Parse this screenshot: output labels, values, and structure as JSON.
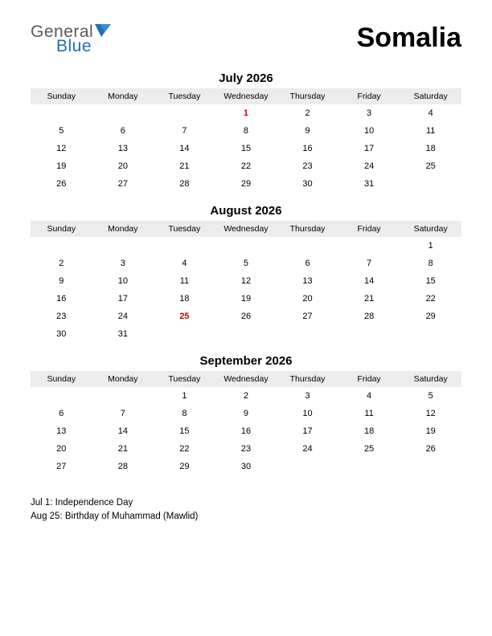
{
  "logo": {
    "text_general": "General",
    "text_blue": "Blue",
    "icon_color": "#1e6fb8",
    "general_color": "#5a5a5a"
  },
  "country": "Somalia",
  "day_headers": [
    "Sunday",
    "Monday",
    "Tuesday",
    "Wednesday",
    "Thursday",
    "Friday",
    "Saturday"
  ],
  "colors": {
    "header_bg": "#ececec",
    "holiday_text": "#cc0000",
    "text": "#000000",
    "background": "#ffffff"
  },
  "months": [
    {
      "title": "July 2026",
      "weeks": [
        [
          {
            "d": ""
          },
          {
            "d": ""
          },
          {
            "d": ""
          },
          {
            "d": "1",
            "h": true
          },
          {
            "d": "2"
          },
          {
            "d": "3"
          },
          {
            "d": "4"
          }
        ],
        [
          {
            "d": "5"
          },
          {
            "d": "6"
          },
          {
            "d": "7"
          },
          {
            "d": "8"
          },
          {
            "d": "9"
          },
          {
            "d": "10"
          },
          {
            "d": "11"
          }
        ],
        [
          {
            "d": "12"
          },
          {
            "d": "13"
          },
          {
            "d": "14"
          },
          {
            "d": "15"
          },
          {
            "d": "16"
          },
          {
            "d": "17"
          },
          {
            "d": "18"
          }
        ],
        [
          {
            "d": "19"
          },
          {
            "d": "20"
          },
          {
            "d": "21"
          },
          {
            "d": "22"
          },
          {
            "d": "23"
          },
          {
            "d": "24"
          },
          {
            "d": "25"
          }
        ],
        [
          {
            "d": "26"
          },
          {
            "d": "27"
          },
          {
            "d": "28"
          },
          {
            "d": "29"
          },
          {
            "d": "30"
          },
          {
            "d": "31"
          },
          {
            "d": ""
          }
        ]
      ]
    },
    {
      "title": "August 2026",
      "weeks": [
        [
          {
            "d": ""
          },
          {
            "d": ""
          },
          {
            "d": ""
          },
          {
            "d": ""
          },
          {
            "d": ""
          },
          {
            "d": ""
          },
          {
            "d": "1"
          }
        ],
        [
          {
            "d": "2"
          },
          {
            "d": "3"
          },
          {
            "d": "4"
          },
          {
            "d": "5"
          },
          {
            "d": "6"
          },
          {
            "d": "7"
          },
          {
            "d": "8"
          }
        ],
        [
          {
            "d": "9"
          },
          {
            "d": "10"
          },
          {
            "d": "11"
          },
          {
            "d": "12"
          },
          {
            "d": "13"
          },
          {
            "d": "14"
          },
          {
            "d": "15"
          }
        ],
        [
          {
            "d": "16"
          },
          {
            "d": "17"
          },
          {
            "d": "18"
          },
          {
            "d": "19"
          },
          {
            "d": "20"
          },
          {
            "d": "21"
          },
          {
            "d": "22"
          }
        ],
        [
          {
            "d": "23"
          },
          {
            "d": "24"
          },
          {
            "d": "25",
            "h": true
          },
          {
            "d": "26"
          },
          {
            "d": "27"
          },
          {
            "d": "28"
          },
          {
            "d": "29"
          }
        ],
        [
          {
            "d": "30"
          },
          {
            "d": "31"
          },
          {
            "d": ""
          },
          {
            "d": ""
          },
          {
            "d": ""
          },
          {
            "d": ""
          },
          {
            "d": ""
          }
        ]
      ]
    },
    {
      "title": "September 2026",
      "weeks": [
        [
          {
            "d": ""
          },
          {
            "d": ""
          },
          {
            "d": "1"
          },
          {
            "d": "2"
          },
          {
            "d": "3"
          },
          {
            "d": "4"
          },
          {
            "d": "5"
          }
        ],
        [
          {
            "d": "6"
          },
          {
            "d": "7"
          },
          {
            "d": "8"
          },
          {
            "d": "9"
          },
          {
            "d": "10"
          },
          {
            "d": "11"
          },
          {
            "d": "12"
          }
        ],
        [
          {
            "d": "13"
          },
          {
            "d": "14"
          },
          {
            "d": "15"
          },
          {
            "d": "16"
          },
          {
            "d": "17"
          },
          {
            "d": "18"
          },
          {
            "d": "19"
          }
        ],
        [
          {
            "d": "20"
          },
          {
            "d": "21"
          },
          {
            "d": "22"
          },
          {
            "d": "23"
          },
          {
            "d": "24"
          },
          {
            "d": "25"
          },
          {
            "d": "26"
          }
        ],
        [
          {
            "d": "27"
          },
          {
            "d": "28"
          },
          {
            "d": "29"
          },
          {
            "d": "30"
          },
          {
            "d": ""
          },
          {
            "d": ""
          },
          {
            "d": ""
          }
        ]
      ]
    }
  ],
  "holiday_list": [
    "Jul 1: Independence Day",
    "Aug 25: Birthday of Muhammad (Mawlid)"
  ]
}
